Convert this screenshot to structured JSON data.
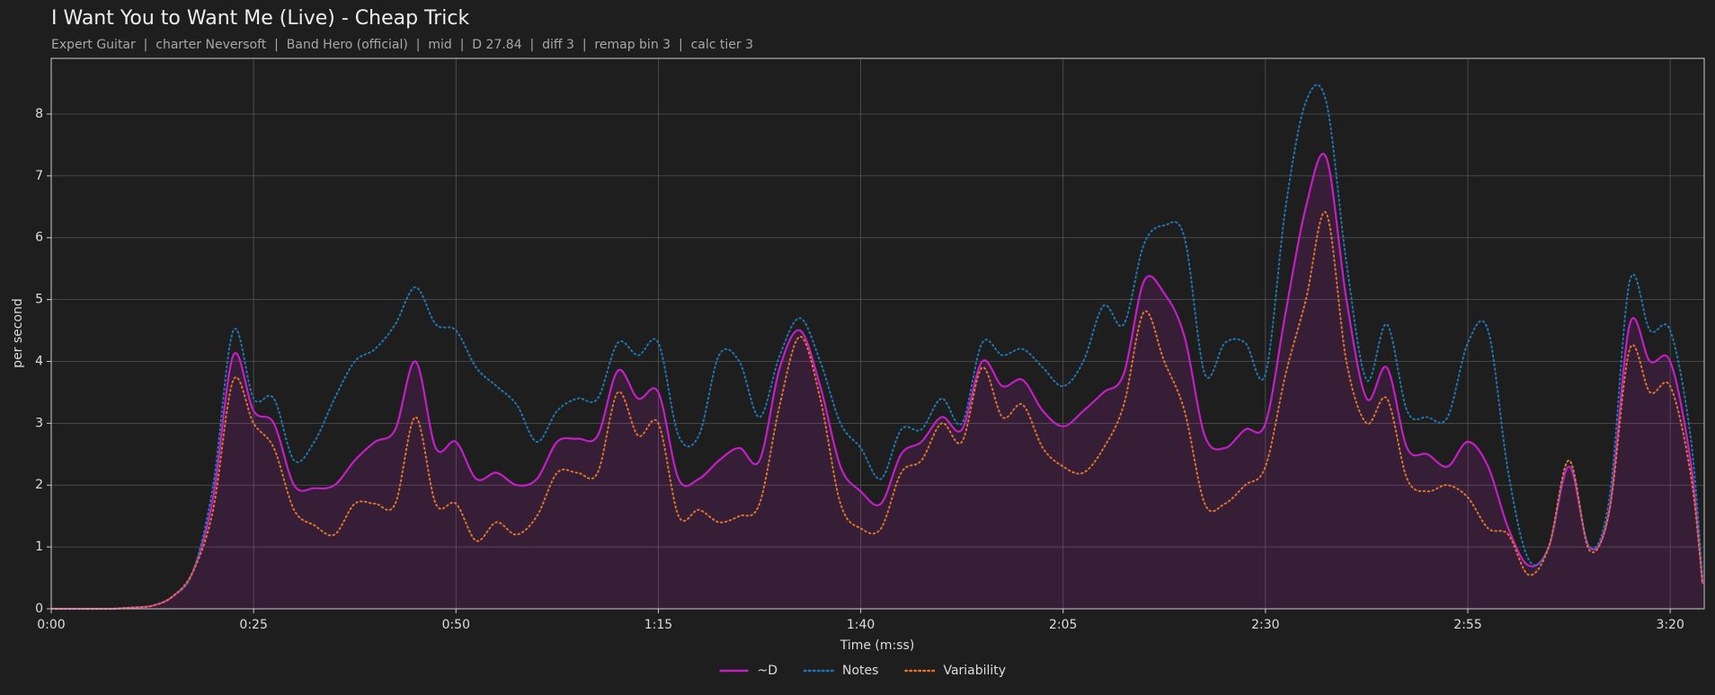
{
  "chart_data": {
    "type": "line",
    "title": "I Want You to Want Me (Live) - Cheap Trick",
    "subtitle": "Expert Guitar  |  charter Neversoft  |  Band Hero (official)  |  mid  |  D 27.84  |  diff 3  |  remap bin 3  |  calc tier 3",
    "x_label": "Time (m:ss)",
    "y_label": "per second",
    "x": [
      0,
      2.5,
      5,
      7.5,
      10,
      12.5,
      15,
      17.5,
      20,
      22.5,
      25,
      27.5,
      30,
      32.5,
      35,
      37.5,
      40,
      42.5,
      45,
      47.5,
      50,
      52.5,
      55,
      57.5,
      60,
      62.5,
      65,
      67.5,
      70,
      72.5,
      75,
      77.5,
      80,
      82.5,
      85,
      87.5,
      90,
      92.5,
      95,
      97.5,
      100,
      102.5,
      105,
      107.5,
      110,
      112.5,
      115,
      117.5,
      120,
      122.5,
      125,
      127.5,
      130,
      132.5,
      135,
      137.5,
      140,
      142.5,
      145,
      147.5,
      150,
      152.5,
      155,
      157.5,
      160,
      162.5,
      165,
      167.5,
      170,
      172.5,
      175,
      177.5,
      180,
      182.5,
      185,
      187.5,
      190,
      192.5,
      195,
      197.5,
      200,
      202.5,
      204
    ],
    "series": [
      {
        "name": "~D",
        "color": "#c21fc4",
        "style": "solid",
        "area": true,
        "values": [
          0,
          0,
          0,
          0,
          0.02,
          0.05,
          0.2,
          0.6,
          1.8,
          4.1,
          3.2,
          3.0,
          2.0,
          1.95,
          2.0,
          2.4,
          2.7,
          2.9,
          4.0,
          2.6,
          2.7,
          2.1,
          2.2,
          2.0,
          2.1,
          2.7,
          2.75,
          2.8,
          3.85,
          3.4,
          3.5,
          2.1,
          2.1,
          2.4,
          2.6,
          2.4,
          3.9,
          4.5,
          3.6,
          2.3,
          1.9,
          1.7,
          2.5,
          2.7,
          3.1,
          2.9,
          4.0,
          3.6,
          3.7,
          3.2,
          2.95,
          3.2,
          3.5,
          3.8,
          5.3,
          5.1,
          4.4,
          2.8,
          2.6,
          2.9,
          3.0,
          4.8,
          6.5,
          7.3,
          5.0,
          3.4,
          3.9,
          2.6,
          2.5,
          2.3,
          2.7,
          2.3,
          1.3,
          0.7,
          1.0,
          2.3,
          1.0,
          1.6,
          4.6,
          4.0,
          4.0,
          2.4,
          0.4
        ]
      },
      {
        "name": "Notes",
        "color": "#1f77b4",
        "style": "dotted",
        "area": false,
        "values": [
          0,
          0,
          0,
          0,
          0.02,
          0.05,
          0.2,
          0.6,
          2.0,
          4.5,
          3.4,
          3.4,
          2.4,
          2.7,
          3.4,
          4.0,
          4.2,
          4.6,
          5.2,
          4.6,
          4.5,
          3.9,
          3.6,
          3.3,
          2.7,
          3.2,
          3.4,
          3.4,
          4.3,
          4.1,
          4.3,
          2.8,
          2.8,
          4.1,
          4.0,
          3.1,
          4.1,
          4.7,
          4.0,
          3.0,
          2.6,
          2.1,
          2.9,
          2.9,
          3.4,
          3.0,
          4.3,
          4.1,
          4.2,
          3.9,
          3.6,
          4.0,
          4.9,
          4.6,
          5.9,
          6.2,
          6.0,
          3.8,
          4.3,
          4.3,
          3.8,
          6.5,
          8.2,
          8.2,
          5.6,
          3.7,
          4.6,
          3.2,
          3.1,
          3.1,
          4.3,
          4.5,
          2.2,
          0.8,
          1.0,
          2.4,
          1.0,
          1.8,
          5.3,
          4.5,
          4.5,
          2.8,
          0.5
        ]
      },
      {
        "name": "Variability",
        "color": "#e0742a",
        "style": "dotted",
        "area": false,
        "values": [
          0,
          0,
          0,
          0,
          0.02,
          0.05,
          0.2,
          0.6,
          1.6,
          3.7,
          3.0,
          2.6,
          1.6,
          1.35,
          1.2,
          1.7,
          1.7,
          1.7,
          3.1,
          1.7,
          1.7,
          1.1,
          1.4,
          1.2,
          1.5,
          2.2,
          2.2,
          2.2,
          3.5,
          2.8,
          3.0,
          1.5,
          1.6,
          1.4,
          1.5,
          1.7,
          3.3,
          4.4,
          3.4,
          1.7,
          1.3,
          1.3,
          2.2,
          2.4,
          3.0,
          2.7,
          3.9,
          3.1,
          3.3,
          2.6,
          2.3,
          2.2,
          2.6,
          3.3,
          4.8,
          4.0,
          3.2,
          1.7,
          1.7,
          2.0,
          2.3,
          3.8,
          5.0,
          6.4,
          4.0,
          3.0,
          3.4,
          2.1,
          1.9,
          2.0,
          1.8,
          1.3,
          1.2,
          0.55,
          1.0,
          2.4,
          0.95,
          1.6,
          4.2,
          3.5,
          3.6,
          2.2,
          0.4
        ]
      }
    ],
    "xlim": [
      0,
      204.2
    ],
    "ylim": [
      0,
      8.9
    ],
    "xticks": [
      {
        "value": 0,
        "label": "0:00"
      },
      {
        "value": 25,
        "label": "0:25"
      },
      {
        "value": 50,
        "label": "0:50"
      },
      {
        "value": 75,
        "label": "1:15"
      },
      {
        "value": 100,
        "label": "1:40"
      },
      {
        "value": 125,
        "label": "2:05"
      },
      {
        "value": 150,
        "label": "2:30"
      },
      {
        "value": 175,
        "label": "2:55"
      },
      {
        "value": 200,
        "label": "3:20"
      }
    ],
    "yticks": [
      0,
      1,
      2,
      3,
      4,
      5,
      6,
      7,
      8
    ],
    "grid": true,
    "legend": "bottom"
  }
}
